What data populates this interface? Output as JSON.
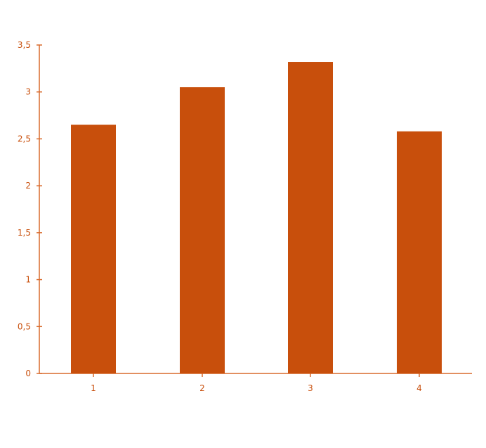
{
  "chart_data": {
    "type": "bar",
    "categories": [
      "1",
      "2",
      "3",
      "4"
    ],
    "values": [
      2.65,
      3.05,
      3.32,
      2.58
    ],
    "ylim": [
      0,
      3.5
    ],
    "y_ticks": [
      0,
      0.5,
      1,
      1.5,
      2,
      2.5,
      3,
      3.5
    ],
    "y_tick_labels": [
      "0",
      "0,5",
      "1",
      "1,5",
      "2",
      "2,5",
      "3",
      "3,5"
    ],
    "grid": false,
    "title": "",
    "xlabel": "",
    "ylabel": ""
  },
  "colors": {
    "bar": "#c84f0c",
    "axis": "#d86a2c",
    "tick_label": "#c84f0c"
  }
}
